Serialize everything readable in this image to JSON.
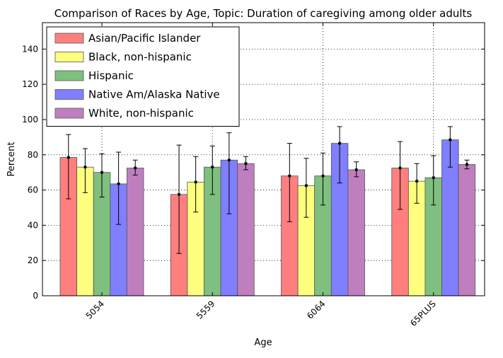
{
  "chart_data": {
    "type": "bar",
    "title": "Comparison of Races by Age, Topic: Duration of caregiving among older adults",
    "xlabel": "Age",
    "ylabel": "Percent",
    "ylim": [
      0,
      155
    ],
    "yticks": [
      0,
      20,
      40,
      60,
      80,
      100,
      120,
      140
    ],
    "categories": [
      "5054",
      "5559",
      "6064",
      "65PLUS"
    ],
    "grid": true,
    "legend_position": "top-left",
    "series": [
      {
        "name": "Asian/Pacific Islander",
        "color": "#ff7f7f",
        "values": [
          78.5,
          57.5,
          68.0,
          72.5
        ],
        "error_low": [
          55.0,
          24.0,
          42.0,
          49.0
        ],
        "error_high": [
          91.5,
          85.5,
          86.5,
          87.5
        ]
      },
      {
        "name": "Black, non-hispanic",
        "color": "#ffff7f",
        "values": [
          73.0,
          64.5,
          62.5,
          65.0
        ],
        "error_low": [
          58.5,
          47.5,
          44.5,
          52.5
        ],
        "error_high": [
          83.5,
          79.0,
          78.0,
          75.0
        ]
      },
      {
        "name": "Hispanic",
        "color": "#7fbf7f",
        "values": [
          70.0,
          73.0,
          68.0,
          67.0
        ],
        "error_low": [
          56.0,
          57.5,
          51.5,
          51.5
        ],
        "error_high": [
          80.5,
          85.0,
          81.0,
          79.5
        ]
      },
      {
        "name": "Native Am/Alaska Native",
        "color": "#7f7fff",
        "values": [
          63.5,
          77.0,
          86.5,
          88.5
        ],
        "error_low": [
          40.5,
          46.5,
          64.0,
          73.0
        ],
        "error_high": [
          81.5,
          92.5,
          96.0,
          96.0
        ]
      },
      {
        "name": "White, non-hispanic",
        "color": "#bf7fbf",
        "values": [
          72.5,
          75.0,
          71.5,
          74.5
        ],
        "error_low": [
          68.5,
          71.5,
          67.5,
          72.0
        ],
        "error_high": [
          77.0,
          79.0,
          76.0,
          77.0
        ]
      }
    ]
  }
}
